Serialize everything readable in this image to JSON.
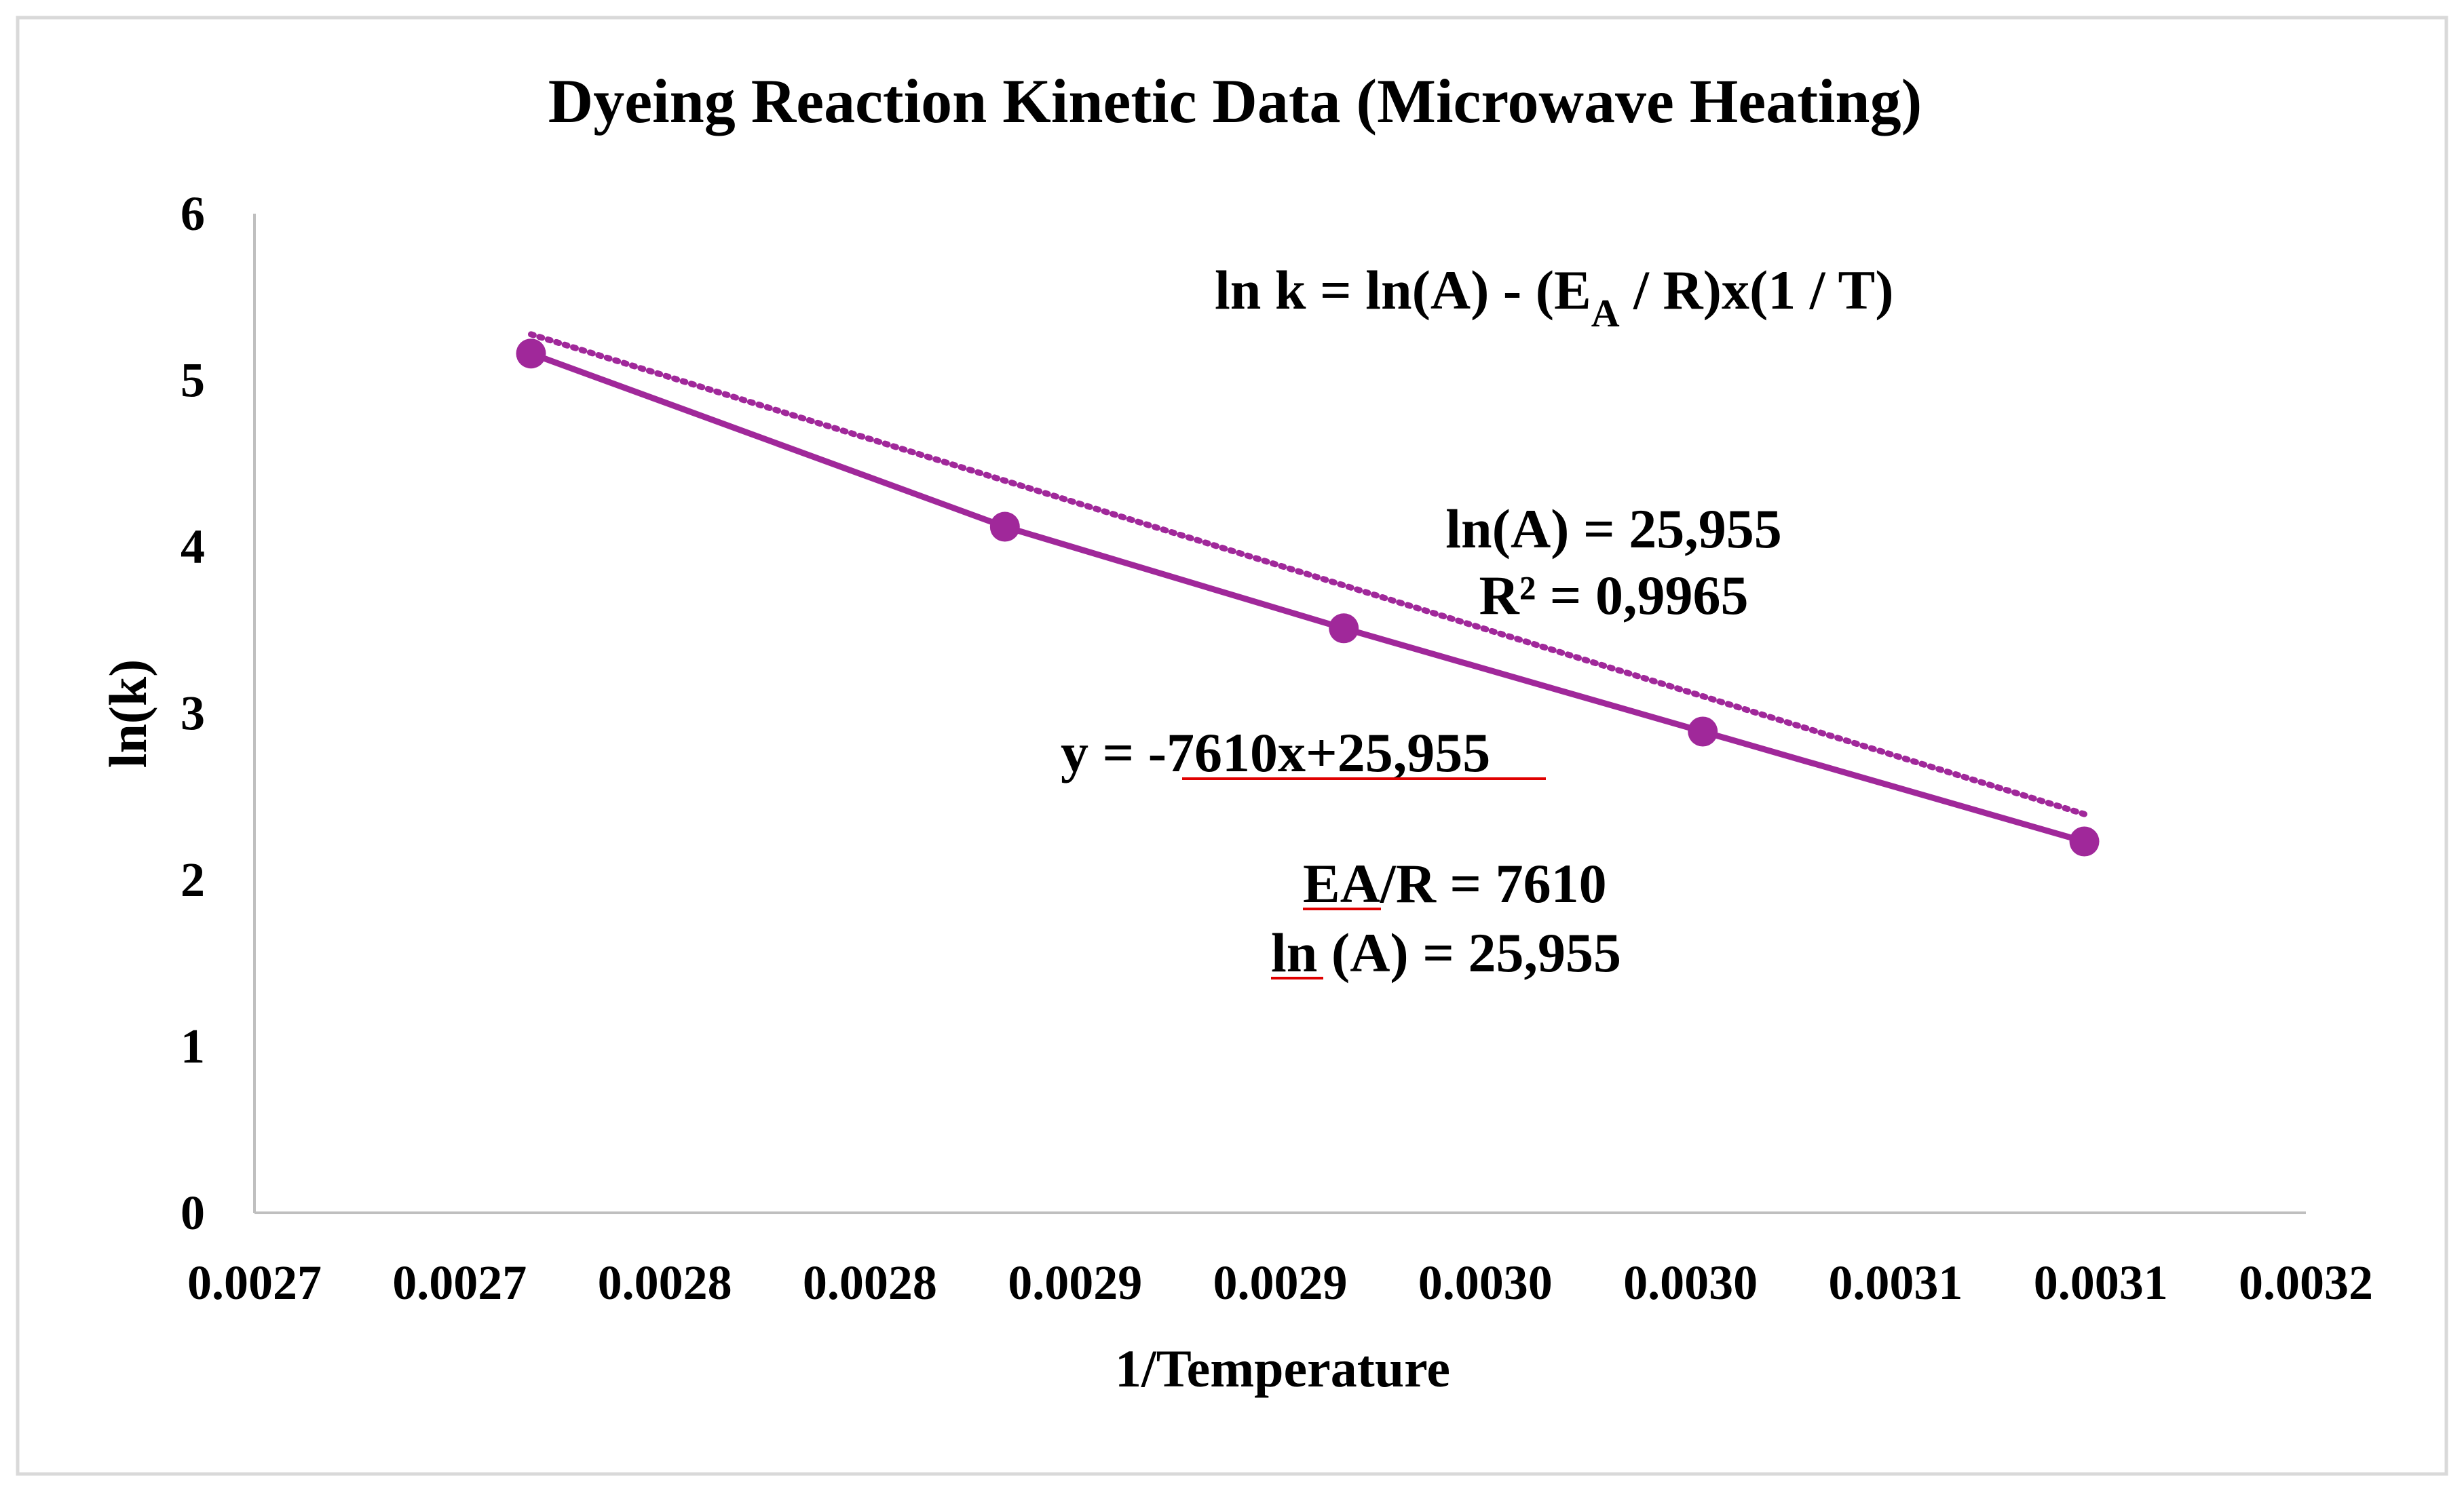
{
  "chart_data": {
    "type": "scatter",
    "title": "Dyeing Reaction Kinetic Data (Microwave Heating)",
    "xlabel": "1/Temperature",
    "ylabel": "ln(k)",
    "xlim": [
      0.00265,
      0.00315
    ],
    "ylim": [
      0,
      6
    ],
    "x_tick_labels": [
      "0.0027",
      "0.0027",
      "0.0028",
      "0.0028",
      "0.0029",
      "0.0029",
      "0.0030",
      "0.0030",
      "0.0031",
      "0.0031",
      "0.0032"
    ],
    "y_ticks": [
      0,
      1,
      2,
      3,
      4,
      5,
      6
    ],
    "grid": false,
    "colors": {
      "series": "#A0289A",
      "trendline": "#A0289A",
      "axis": "#BFBFBF",
      "border": "#D9D9D9",
      "underline": "#E00000"
    },
    "series": [
      {
        "name": "ln(k)",
        "marker": "circle",
        "line": "solid",
        "x": [
          0.0027174,
          0.0028329,
          0.0029155,
          0.003003,
          0.003096
        ],
        "y": [
          5.16,
          4.12,
          3.51,
          2.89,
          2.23
        ]
      }
    ],
    "trendline": {
      "type": "linear",
      "style": "dotted",
      "slope": -7610,
      "intercept": 25.955,
      "x_range": [
        0.0027174,
        0.003096
      ]
    },
    "annotations": {
      "formula": {
        "prefix": "ln k = ln(A) - (E",
        "sub": "A",
        "suffix": " / R)x(1 / T)"
      },
      "ln_a_top": "ln(A) = 25,955",
      "r_squared": "R² = 0,9965",
      "equation": {
        "prefix": "y = -",
        "underlined": "7610x+25,955"
      },
      "ea_r": {
        "underlined": "EA",
        "suffix": "/R = 7610"
      },
      "ln_a_bottom": {
        "underlined": "ln",
        "suffix": " (A) = 25,955"
      }
    }
  }
}
